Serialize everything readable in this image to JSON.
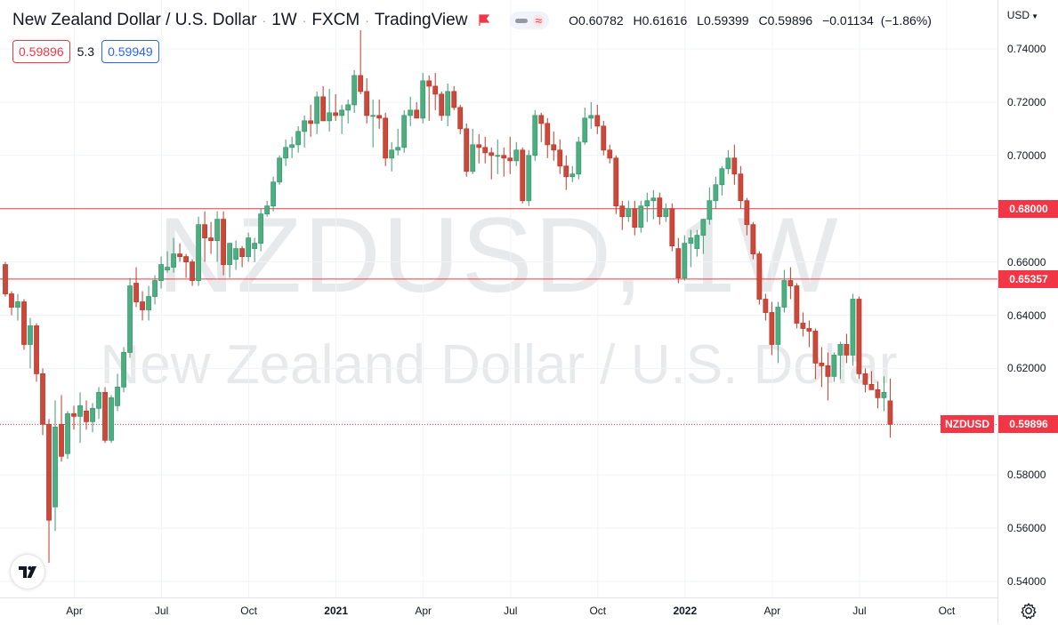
{
  "header": {
    "title": "New Zealand Dollar / U.S. Dollar",
    "interval": "1W",
    "exchange": "FXCM",
    "source": "TradingView",
    "ohlc": {
      "open_label": "O",
      "open": "0.60782",
      "high_label": "H",
      "high": "0.61616",
      "low_label": "L",
      "low": "0.59399",
      "close_label": "C",
      "close": "0.59896",
      "change": "−0.01134",
      "change_pct": "(−1.86%)"
    }
  },
  "trade": {
    "sell": "0.59896",
    "spread": "5.3",
    "buy": "0.59949"
  },
  "currency": "USD",
  "watermark": {
    "symbol": "NZDUSD, 1W",
    "name": "New Zealand Dollar / U.S. Dollar"
  },
  "colors": {
    "up": "#3d9970",
    "down": "#c0392b",
    "line": "#f23645",
    "upFill": "#4caf82",
    "downFill": "#c94a3c"
  },
  "chart_data": {
    "type": "candlestick",
    "title": "New Zealand Dollar / U.S. Dollar",
    "ylim": [
      0.533,
      0.749
    ],
    "yticks": [
      0.54,
      0.56,
      0.58,
      0.6,
      0.62,
      0.64,
      0.66,
      0.68,
      0.7,
      0.72,
      0.74
    ],
    "ytick_labels": [
      "0.54000",
      "0.56000",
      "0.58000",
      "0.60000",
      "0.62000",
      "0.64000",
      "0.66000",
      "0.68000",
      "0.70000",
      "0.72000",
      "0.74000"
    ],
    "x_labels": [
      {
        "label": "Apr",
        "week": 11,
        "bold": false
      },
      {
        "label": "Jul",
        "week": 25,
        "bold": false
      },
      {
        "label": "Oct",
        "week": 39,
        "bold": false
      },
      {
        "label": "2021",
        "week": 53,
        "bold": true
      },
      {
        "label": "Apr",
        "week": 67,
        "bold": false
      },
      {
        "label": "Jul",
        "week": 81,
        "bold": false
      },
      {
        "label": "Oct",
        "week": 95,
        "bold": false
      },
      {
        "label": "2022",
        "week": 109,
        "bold": true
      },
      {
        "label": "Apr",
        "week": 123,
        "bold": false
      },
      {
        "label": "Jul",
        "week": 137,
        "bold": false
      },
      {
        "label": "Oct",
        "week": 151,
        "bold": false
      }
    ],
    "horizontal_lines": [
      {
        "value": 0.68,
        "label": "0.68000"
      },
      {
        "value": 0.65357,
        "label": "0.65357"
      }
    ],
    "last_price": {
      "value": 0.59896,
      "label": "0.59896",
      "symbol": "NZDUSD"
    },
    "candles": [
      [
        0.659,
        0.66,
        0.647,
        0.648
      ],
      [
        0.648,
        0.649,
        0.64,
        0.643
      ],
      [
        0.643,
        0.648,
        0.638,
        0.645
      ],
      [
        0.645,
        0.646,
        0.627,
        0.629
      ],
      [
        0.629,
        0.639,
        0.62,
        0.636
      ],
      [
        0.636,
        0.637,
        0.615,
        0.618
      ],
      [
        0.618,
        0.62,
        0.595,
        0.599
      ],
      [
        0.599,
        0.601,
        0.547,
        0.563
      ],
      [
        0.568,
        0.608,
        0.559,
        0.598
      ],
      [
        0.599,
        0.61,
        0.585,
        0.587
      ],
      [
        0.588,
        0.604,
        0.586,
        0.603
      ],
      [
        0.603,
        0.606,
        0.597,
        0.602
      ],
      [
        0.602,
        0.611,
        0.592,
        0.606
      ],
      [
        0.604,
        0.608,
        0.597,
        0.6
      ],
      [
        0.6,
        0.607,
        0.596,
        0.605
      ],
      [
        0.605,
        0.613,
        0.601,
        0.611
      ],
      [
        0.611,
        0.613,
        0.592,
        0.593
      ],
      [
        0.593,
        0.61,
        0.592,
        0.609
      ],
      [
        0.606,
        0.618,
        0.604,
        0.613
      ],
      [
        0.613,
        0.628,
        0.611,
        0.626
      ],
      [
        0.626,
        0.654,
        0.624,
        0.651
      ],
      [
        0.652,
        0.658,
        0.643,
        0.645
      ],
      [
        0.645,
        0.649,
        0.638,
        0.642
      ],
      [
        0.642,
        0.651,
        0.638,
        0.647
      ],
      [
        0.647,
        0.655,
        0.644,
        0.653
      ],
      [
        0.653,
        0.662,
        0.65,
        0.659
      ],
      [
        0.657,
        0.664,
        0.656,
        0.658
      ],
      [
        0.658,
        0.669,
        0.656,
        0.663
      ],
      [
        0.663,
        0.667,
        0.66,
        0.662
      ],
      [
        0.662,
        0.663,
        0.654,
        0.66
      ],
      [
        0.66,
        0.661,
        0.651,
        0.653
      ],
      [
        0.653,
        0.677,
        0.651,
        0.674
      ],
      [
        0.674,
        0.679,
        0.66,
        0.669
      ],
      [
        0.669,
        0.675,
        0.663,
        0.668
      ],
      [
        0.668,
        0.679,
        0.66,
        0.676
      ],
      [
        0.676,
        0.679,
        0.655,
        0.659
      ],
      [
        0.659,
        0.665,
        0.654,
        0.667
      ],
      [
        0.661,
        0.668,
        0.657,
        0.665
      ],
      [
        0.665,
        0.666,
        0.658,
        0.662
      ],
      [
        0.662,
        0.671,
        0.66,
        0.669
      ],
      [
        0.665,
        0.669,
        0.66,
        0.667
      ],
      [
        0.667,
        0.68,
        0.664,
        0.678
      ],
      [
        0.678,
        0.683,
        0.677,
        0.681
      ],
      [
        0.681,
        0.692,
        0.679,
        0.69
      ],
      [
        0.69,
        0.7,
        0.689,
        0.699
      ],
      [
        0.699,
        0.706,
        0.696,
        0.703
      ],
      [
        0.703,
        0.707,
        0.699,
        0.704
      ],
      [
        0.704,
        0.711,
        0.701,
        0.709
      ],
      [
        0.709,
        0.715,
        0.703,
        0.713
      ],
      [
        0.713,
        0.719,
        0.707,
        0.712
      ],
      [
        0.712,
        0.724,
        0.708,
        0.722
      ],
      [
        0.722,
        0.726,
        0.714,
        0.713
      ],
      [
        0.713,
        0.725,
        0.709,
        0.716
      ],
      [
        0.716,
        0.723,
        0.713,
        0.715
      ],
      [
        0.715,
        0.719,
        0.708,
        0.717
      ],
      [
        0.717,
        0.721,
        0.712,
        0.719
      ],
      [
        0.719,
        0.732,
        0.716,
        0.73
      ],
      [
        0.73,
        0.747,
        0.723,
        0.724
      ],
      [
        0.724,
        0.729,
        0.712,
        0.715
      ],
      [
        0.715,
        0.721,
        0.703,
        0.715
      ],
      [
        0.715,
        0.721,
        0.71,
        0.714
      ],
      [
        0.714,
        0.716,
        0.696,
        0.699
      ],
      [
        0.699,
        0.705,
        0.694,
        0.702
      ],
      [
        0.702,
        0.71,
        0.7,
        0.703
      ],
      [
        0.703,
        0.717,
        0.701,
        0.715
      ],
      [
        0.715,
        0.722,
        0.711,
        0.717
      ],
      [
        0.717,
        0.72,
        0.714,
        0.714
      ],
      [
        0.714,
        0.731,
        0.712,
        0.728
      ],
      [
        0.728,
        0.73,
        0.713,
        0.726
      ],
      [
        0.726,
        0.731,
        0.717,
        0.723
      ],
      [
        0.723,
        0.724,
        0.713,
        0.715
      ],
      [
        0.715,
        0.727,
        0.711,
        0.724
      ],
      [
        0.724,
        0.726,
        0.717,
        0.718
      ],
      [
        0.718,
        0.719,
        0.708,
        0.71
      ],
      [
        0.71,
        0.712,
        0.692,
        0.694
      ],
      [
        0.694,
        0.71,
        0.693,
        0.704
      ],
      [
        0.704,
        0.708,
        0.697,
        0.703
      ],
      [
        0.703,
        0.707,
        0.697,
        0.701
      ],
      [
        0.701,
        0.703,
        0.691,
        0.7
      ],
      [
        0.7,
        0.706,
        0.693,
        0.7
      ],
      [
        0.7,
        0.703,
        0.692,
        0.699
      ],
      [
        0.699,
        0.707,
        0.693,
        0.698
      ],
      [
        0.698,
        0.705,
        0.696,
        0.702
      ],
      [
        0.702,
        0.703,
        0.682,
        0.683
      ],
      [
        0.683,
        0.702,
        0.681,
        0.7
      ],
      [
        0.7,
        0.717,
        0.698,
        0.715
      ],
      [
        0.715,
        0.716,
        0.705,
        0.712
      ],
      [
        0.712,
        0.714,
        0.699,
        0.704
      ],
      [
        0.704,
        0.709,
        0.698,
        0.702
      ],
      [
        0.702,
        0.706,
        0.693,
        0.696
      ],
      [
        0.696,
        0.7,
        0.687,
        0.692
      ],
      [
        0.692,
        0.696,
        0.69,
        0.693
      ],
      [
        0.693,
        0.707,
        0.691,
        0.705
      ],
      [
        0.705,
        0.718,
        0.704,
        0.714
      ],
      [
        0.714,
        0.72,
        0.71,
        0.715
      ],
      [
        0.715,
        0.719,
        0.708,
        0.711
      ],
      [
        0.711,
        0.713,
        0.7,
        0.702
      ],
      [
        0.702,
        0.704,
        0.697,
        0.699
      ],
      [
        0.699,
        0.7,
        0.678,
        0.681
      ],
      [
        0.681,
        0.683,
        0.672,
        0.677
      ],
      [
        0.677,
        0.683,
        0.675,
        0.68
      ],
      [
        0.68,
        0.683,
        0.67,
        0.673
      ],
      [
        0.673,
        0.683,
        0.671,
        0.681
      ],
      [
        0.681,
        0.686,
        0.675,
        0.683
      ],
      [
        0.683,
        0.687,
        0.676,
        0.684
      ],
      [
        0.684,
        0.686,
        0.674,
        0.677
      ],
      [
        0.677,
        0.682,
        0.675,
        0.68
      ],
      [
        0.68,
        0.682,
        0.664,
        0.666
      ],
      [
        0.665,
        0.669,
        0.652,
        0.654
      ],
      [
        0.654,
        0.67,
        0.653,
        0.667
      ],
      [
        0.667,
        0.672,
        0.658,
        0.669
      ],
      [
        0.665,
        0.672,
        0.662,
        0.67
      ],
      [
        0.67,
        0.675,
        0.663,
        0.676
      ],
      [
        0.676,
        0.688,
        0.674,
        0.683
      ],
      [
        0.683,
        0.692,
        0.68,
        0.689
      ],
      [
        0.689,
        0.696,
        0.685,
        0.695
      ],
      [
        0.695,
        0.702,
        0.693,
        0.699
      ],
      [
        0.699,
        0.704,
        0.689,
        0.693
      ],
      [
        0.693,
        0.696,
        0.68,
        0.683
      ],
      [
        0.683,
        0.684,
        0.67,
        0.674
      ],
      [
        0.674,
        0.675,
        0.661,
        0.663
      ],
      [
        0.663,
        0.664,
        0.644,
        0.646
      ],
      [
        0.646,
        0.648,
        0.638,
        0.641
      ],
      [
        0.641,
        0.645,
        0.625,
        0.629
      ],
      [
        0.629,
        0.645,
        0.622,
        0.643
      ],
      [
        0.643,
        0.657,
        0.641,
        0.653
      ],
      [
        0.653,
        0.658,
        0.646,
        0.651
      ],
      [
        0.651,
        0.652,
        0.635,
        0.637
      ],
      [
        0.637,
        0.641,
        0.632,
        0.635
      ],
      [
        0.635,
        0.638,
        0.628,
        0.634
      ],
      [
        0.634,
        0.635,
        0.616,
        0.622
      ],
      [
        0.622,
        0.628,
        0.613,
        0.621
      ],
      [
        0.621,
        0.626,
        0.608,
        0.617
      ],
      [
        0.617,
        0.626,
        0.615,
        0.625
      ],
      [
        0.625,
        0.63,
        0.616,
        0.629
      ],
      [
        0.629,
        0.633,
        0.622,
        0.625
      ],
      [
        0.625,
        0.648,
        0.621,
        0.646
      ],
      [
        0.646,
        0.647,
        0.616,
        0.618
      ],
      [
        0.618,
        0.62,
        0.611,
        0.614
      ],
      [
        0.614,
        0.619,
        0.612,
        0.612
      ],
      [
        0.612,
        0.615,
        0.605,
        0.609
      ],
      [
        0.609,
        0.617,
        0.604,
        0.611
      ],
      [
        0.6078,
        0.6162,
        0.594,
        0.599
      ]
    ]
  }
}
